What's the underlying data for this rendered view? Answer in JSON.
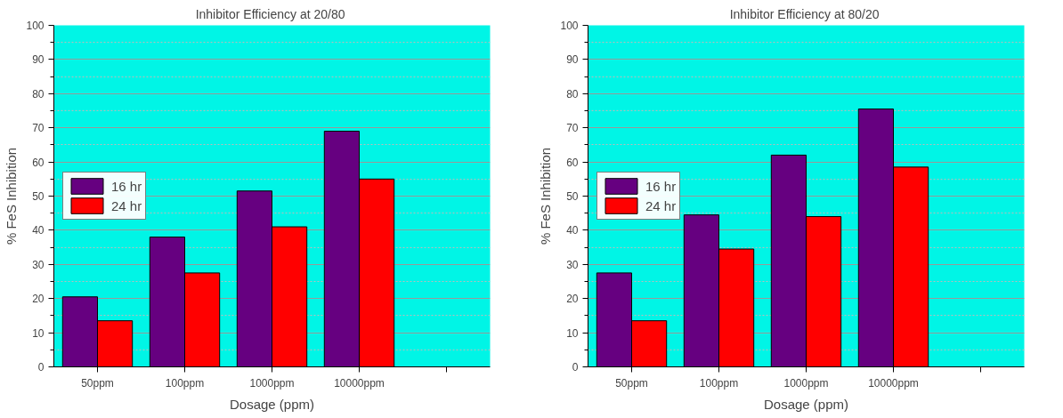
{
  "chart_data": [
    {
      "type": "bar",
      "title": "Inhibitor Efficiency at  20/80",
      "xlabel": "Dosage (ppm)",
      "ylabel": "% FeS Inhibition",
      "categories": [
        "50ppm",
        "100ppm",
        "1000ppm",
        "10000ppm",
        null
      ],
      "series": [
        {
          "name": "16 hr",
          "color": "#660080",
          "values": [
            20.5,
            38,
            51.5,
            69,
            null
          ]
        },
        {
          "name": "24 hr",
          "color": "#ff0000",
          "values": [
            13.5,
            27.5,
            41,
            55,
            null
          ]
        }
      ],
      "ylim": [
        0,
        100
      ],
      "yticks": [
        0,
        10,
        20,
        30,
        40,
        50,
        60,
        70,
        80,
        90,
        100
      ],
      "grid": "y",
      "legend": "left"
    },
    {
      "type": "bar",
      "title": "Inhibitor Efficiency at  80/20",
      "xlabel": "Dosage (ppm)",
      "ylabel": "% FeS Inhibition",
      "categories": [
        "50ppm",
        "100ppm",
        "1000ppm",
        "10000ppm",
        null
      ],
      "series": [
        {
          "name": "16 hr",
          "color": "#660080",
          "values": [
            27.5,
            44.5,
            62,
            75.5,
            null
          ]
        },
        {
          "name": "24 hr",
          "color": "#ff0000",
          "values": [
            13.5,
            34.5,
            44,
            58.5,
            null
          ]
        }
      ],
      "ylim": [
        0,
        100
      ],
      "yticks": [
        0,
        10,
        20,
        30,
        40,
        50,
        60,
        70,
        80,
        90,
        100
      ],
      "grid": "y",
      "legend": "left"
    }
  ]
}
